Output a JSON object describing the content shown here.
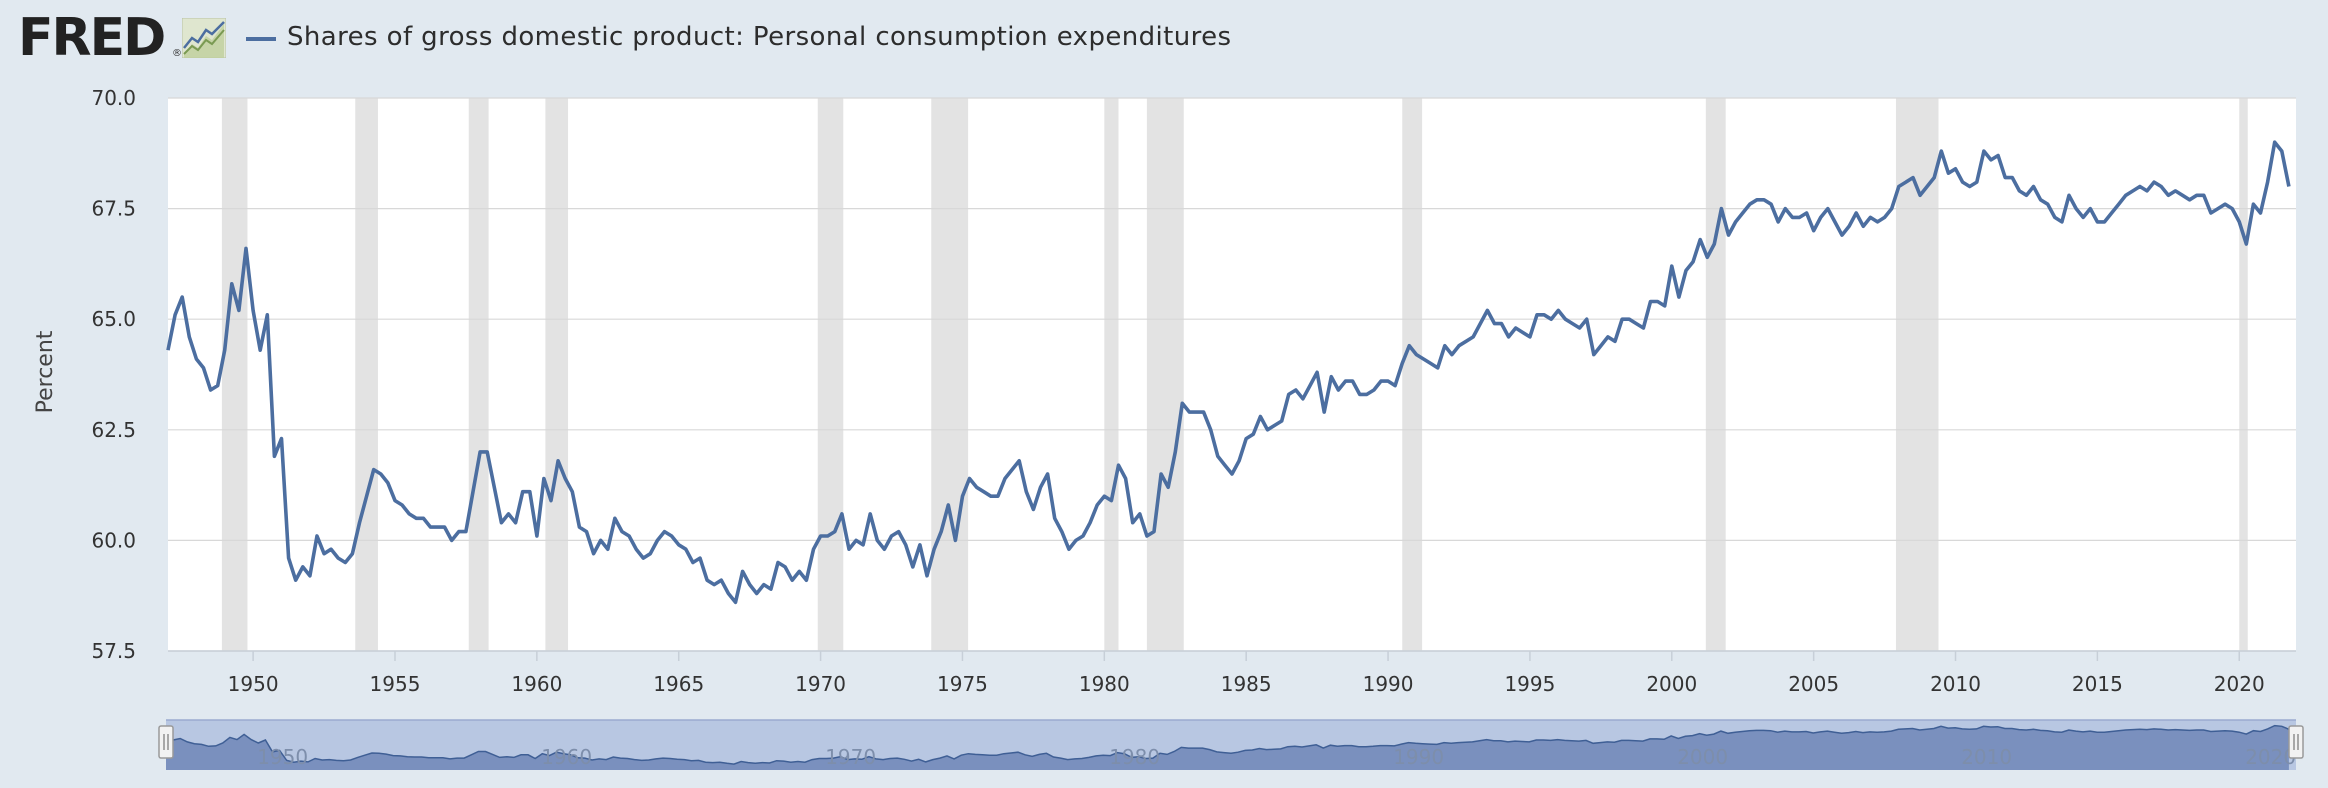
{
  "header": {
    "logo_text": "FRED",
    "logo_mark": "®",
    "logo_chart_icon": "line-chart-icon",
    "series_title": "Shares of gross domestic product: Personal consumption expenditures"
  },
  "colors": {
    "background": "#e1e9f0",
    "plot_background": "#ffffff",
    "line": "#4c6ea0",
    "recession": "#e3e3e3",
    "gridline": "#d8d8d8",
    "navigator_fill": "#6f86b7",
    "navigator_mask": "#b8c7e2"
  },
  "chart_data": {
    "type": "line",
    "title": "Shares of gross domestic product: Personal consumption expenditures",
    "xlabel": "",
    "ylabel": "Percent",
    "x_type": "year",
    "xlim": [
      1947.0,
      2022.0
    ],
    "ylim": [
      57.5,
      70.0
    ],
    "y_ticks": [
      "70.0",
      "67.5",
      "65.0",
      "62.5",
      "60.0",
      "57.5"
    ],
    "x_ticks": [
      "1950",
      "1955",
      "1960",
      "1965",
      "1970",
      "1975",
      "1980",
      "1985",
      "1990",
      "1995",
      "2000",
      "2005",
      "2010",
      "2015",
      "2020"
    ],
    "grid": true,
    "legend": "top-left",
    "recessions": [
      [
        1948.9,
        1949.8
      ],
      [
        1953.6,
        1954.4
      ],
      [
        1957.6,
        1958.3
      ],
      [
        1960.3,
        1961.1
      ],
      [
        1969.9,
        1970.8
      ],
      [
        1973.9,
        1975.2
      ],
      [
        1980.0,
        1980.5
      ],
      [
        1981.5,
        1982.8
      ],
      [
        1990.5,
        1991.2
      ],
      [
        2001.2,
        2001.9
      ],
      [
        2007.9,
        2009.4
      ],
      [
        2020.0,
        2020.3
      ]
    ],
    "series": [
      {
        "name": "Shares of gross domestic product: Personal consumption expenditures",
        "x": [
          1947.0,
          1947.25,
          1947.5,
          1947.75,
          1948.0,
          1948.25,
          1948.5,
          1948.75,
          1949.0,
          1949.25,
          1949.5,
          1949.75,
          1950.0,
          1950.25,
          1950.5,
          1950.75,
          1951.0,
          1951.25,
          1951.5,
          1951.75,
          1952.0,
          1952.25,
          1952.5,
          1952.75,
          1953.0,
          1953.25,
          1953.5,
          1953.75,
          1954.0,
          1954.25,
          1954.5,
          1954.75,
          1955.0,
          1955.25,
          1955.5,
          1955.75,
          1956.0,
          1956.25,
          1956.5,
          1956.75,
          1957.0,
          1957.25,
          1957.5,
          1957.75,
          1958.0,
          1958.25,
          1958.5,
          1958.75,
          1959.0,
          1959.25,
          1959.5,
          1959.75,
          1960.0,
          1960.25,
          1960.5,
          1960.75,
          1961.0,
          1961.25,
          1961.5,
          1961.75,
          1962.0,
          1962.25,
          1962.5,
          1962.75,
          1963.0,
          1963.25,
          1963.5,
          1963.75,
          1964.0,
          1964.25,
          1964.5,
          1964.75,
          1965.0,
          1965.25,
          1965.5,
          1965.75,
          1966.0,
          1966.25,
          1966.5,
          1966.75,
          1967.0,
          1967.25,
          1967.5,
          1967.75,
          1968.0,
          1968.25,
          1968.5,
          1968.75,
          1969.0,
          1969.25,
          1969.5,
          1969.75,
          1970.0,
          1970.25,
          1970.5,
          1970.75,
          1971.0,
          1971.25,
          1971.5,
          1971.75,
          1972.0,
          1972.25,
          1972.5,
          1972.75,
          1973.0,
          1973.25,
          1973.5,
          1973.75,
          1974.0,
          1974.25,
          1974.5,
          1974.75,
          1975.0,
          1975.25,
          1975.5,
          1975.75,
          1976.0,
          1976.25,
          1976.5,
          1976.75,
          1977.0,
          1977.25,
          1977.5,
          1977.75,
          1978.0,
          1978.25,
          1978.5,
          1978.75,
          1979.0,
          1979.25,
          1979.5,
          1979.75,
          1980.0,
          1980.25,
          1980.5,
          1980.75,
          1981.0,
          1981.25,
          1981.5,
          1981.75,
          1982.0,
          1982.25,
          1982.5,
          1982.75,
          1983.0,
          1983.25,
          1983.5,
          1983.75,
          1984.0,
          1984.25,
          1984.5,
          1984.75,
          1985.0,
          1985.25,
          1985.5,
          1985.75,
          1986.0,
          1986.25,
          1986.5,
          1986.75,
          1987.0,
          1987.25,
          1987.5,
          1987.75,
          1988.0,
          1988.25,
          1988.5,
          1988.75,
          1989.0,
          1989.25,
          1989.5,
          1989.75,
          1990.0,
          1990.25,
          1990.5,
          1990.75,
          1991.0,
          1991.25,
          1991.5,
          1991.75,
          1992.0,
          1992.25,
          1992.5,
          1992.75,
          1993.0,
          1993.25,
          1993.5,
          1993.75,
          1994.0,
          1994.25,
          1994.5,
          1994.75,
          1995.0,
          1995.25,
          1995.5,
          1995.75,
          1996.0,
          1996.25,
          1996.5,
          1996.75,
          1997.0,
          1997.25,
          1997.5,
          1997.75,
          1998.0,
          1998.25,
          1998.5,
          1998.75,
          1999.0,
          1999.25,
          1999.5,
          1999.75,
          2000.0,
          2000.25,
          2000.5,
          2000.75,
          2001.0,
          2001.25,
          2001.5,
          2001.75,
          2002.0,
          2002.25,
          2002.5,
          2002.75,
          2003.0,
          2003.25,
          2003.5,
          2003.75,
          2004.0,
          2004.25,
          2004.5,
          2004.75,
          2005.0,
          2005.25,
          2005.5,
          2005.75,
          2006.0,
          2006.25,
          2006.5,
          2006.75,
          2007.0,
          2007.25,
          2007.5,
          2007.75,
          2008.0,
          2008.25,
          2008.5,
          2008.75,
          2009.0,
          2009.25,
          2009.5,
          2009.75,
          2010.0,
          2010.25,
          2010.5,
          2010.75,
          2011.0,
          2011.25,
          2011.5,
          2011.75,
          2012.0,
          2012.25,
          2012.5,
          2012.75,
          2013.0,
          2013.25,
          2013.5,
          2013.75,
          2014.0,
          2014.25,
          2014.5,
          2014.75,
          2015.0,
          2015.25,
          2015.5,
          2015.75,
          2016.0,
          2016.25,
          2016.5,
          2016.75,
          2017.0,
          2017.25,
          2017.5,
          2017.75,
          2018.0,
          2018.25,
          2018.5,
          2018.75,
          2019.0,
          2019.25,
          2019.5,
          2019.75,
          2020.0,
          2020.25,
          2020.5,
          2020.75,
          2021.0,
          2021.25,
          2021.5,
          2021.75
        ],
        "y": [
          64.3,
          65.1,
          65.5,
          64.6,
          64.1,
          63.9,
          63.4,
          63.5,
          64.3,
          65.8,
          65.2,
          66.6,
          65.2,
          64.3,
          65.1,
          61.9,
          62.3,
          59.6,
          59.1,
          59.4,
          59.2,
          60.1,
          59.7,
          59.8,
          59.6,
          59.5,
          59.7,
          60.4,
          61.0,
          61.6,
          61.5,
          61.3,
          60.9,
          60.8,
          60.6,
          60.5,
          60.5,
          60.3,
          60.3,
          60.3,
          60.0,
          60.2,
          60.2,
          61.1,
          62.0,
          62.0,
          61.2,
          60.4,
          60.6,
          60.4,
          61.1,
          61.1,
          60.1,
          61.4,
          60.9,
          61.8,
          61.4,
          61.1,
          60.3,
          60.2,
          59.7,
          60.0,
          59.8,
          60.5,
          60.2,
          60.1,
          59.8,
          59.6,
          59.7,
          60.0,
          60.2,
          60.1,
          59.9,
          59.8,
          59.5,
          59.6,
          59.1,
          59.0,
          59.1,
          58.8,
          58.6,
          59.3,
          59.0,
          58.8,
          59.0,
          58.9,
          59.5,
          59.4,
          59.1,
          59.3,
          59.1,
          59.8,
          60.1,
          60.1,
          60.2,
          60.6,
          59.8,
          60.0,
          59.9,
          60.6,
          60.0,
          59.8,
          60.1,
          60.2,
          59.9,
          59.4,
          59.9,
          59.2,
          59.8,
          60.2,
          60.8,
          60.0,
          61.0,
          61.4,
          61.2,
          61.1,
          61.0,
          61.0,
          61.4,
          61.6,
          61.8,
          61.1,
          60.7,
          61.2,
          61.5,
          60.5,
          60.2,
          59.8,
          60.0,
          60.1,
          60.4,
          60.8,
          61.0,
          60.9,
          61.7,
          61.4,
          60.4,
          60.6,
          60.1,
          60.2,
          61.5,
          61.2,
          62.0,
          63.1,
          62.9,
          62.9,
          62.9,
          62.5,
          61.9,
          61.7,
          61.5,
          61.8,
          62.3,
          62.4,
          62.8,
          62.5,
          62.6,
          62.7,
          63.3,
          63.4,
          63.2,
          63.5,
          63.8,
          62.9,
          63.7,
          63.4,
          63.6,
          63.6,
          63.3,
          63.3,
          63.4,
          63.6,
          63.6,
          63.5,
          64.0,
          64.4,
          64.2,
          64.1,
          64.0,
          63.9,
          64.4,
          64.2,
          64.4,
          64.5,
          64.6,
          64.9,
          65.2,
          64.9,
          64.9,
          64.6,
          64.8,
          64.7,
          64.6,
          65.1,
          65.1,
          65.0,
          65.2,
          65.0,
          64.9,
          64.8,
          65.0,
          64.2,
          64.4,
          64.6,
          64.5,
          65.0,
          65.0,
          64.9,
          64.8,
          65.4,
          65.4,
          65.3,
          66.2,
          65.5,
          66.1,
          66.3,
          66.8,
          66.4,
          66.7,
          67.5,
          66.9,
          67.2,
          67.4,
          67.6,
          67.7,
          67.7,
          67.6,
          67.2,
          67.5,
          67.3,
          67.3,
          67.4,
          67.0,
          67.3,
          67.5,
          67.2,
          66.9,
          67.1,
          67.4,
          67.1,
          67.3,
          67.2,
          67.3,
          67.5,
          68.0,
          68.1,
          68.2,
          67.8,
          68.0,
          68.2,
          68.8,
          68.3,
          68.4,
          68.1,
          68.0,
          68.1,
          68.8,
          68.6,
          68.7,
          68.2,
          68.2,
          67.9,
          67.8,
          68.0,
          67.7,
          67.6,
          67.3,
          67.2,
          67.8,
          67.5,
          67.3,
          67.5,
          67.2,
          67.2,
          67.4,
          67.6,
          67.8,
          67.9,
          68.0,
          67.9,
          68.1,
          68.0,
          67.8,
          67.9,
          67.8,
          67.7,
          67.8,
          67.8,
          67.4,
          67.5,
          67.6,
          67.5,
          67.2,
          66.7,
          67.6,
          67.4,
          68.1,
          69.0,
          68.8,
          68.0
        ]
      }
    ]
  },
  "navigator": {
    "x_ticks": [
      "1950",
      "1960",
      "1970",
      "1980",
      "1990",
      "2000",
      "2010",
      "2020"
    ],
    "left_handle_icon": "grip-handle-icon",
    "right_handle_icon": "grip-handle-icon"
  }
}
